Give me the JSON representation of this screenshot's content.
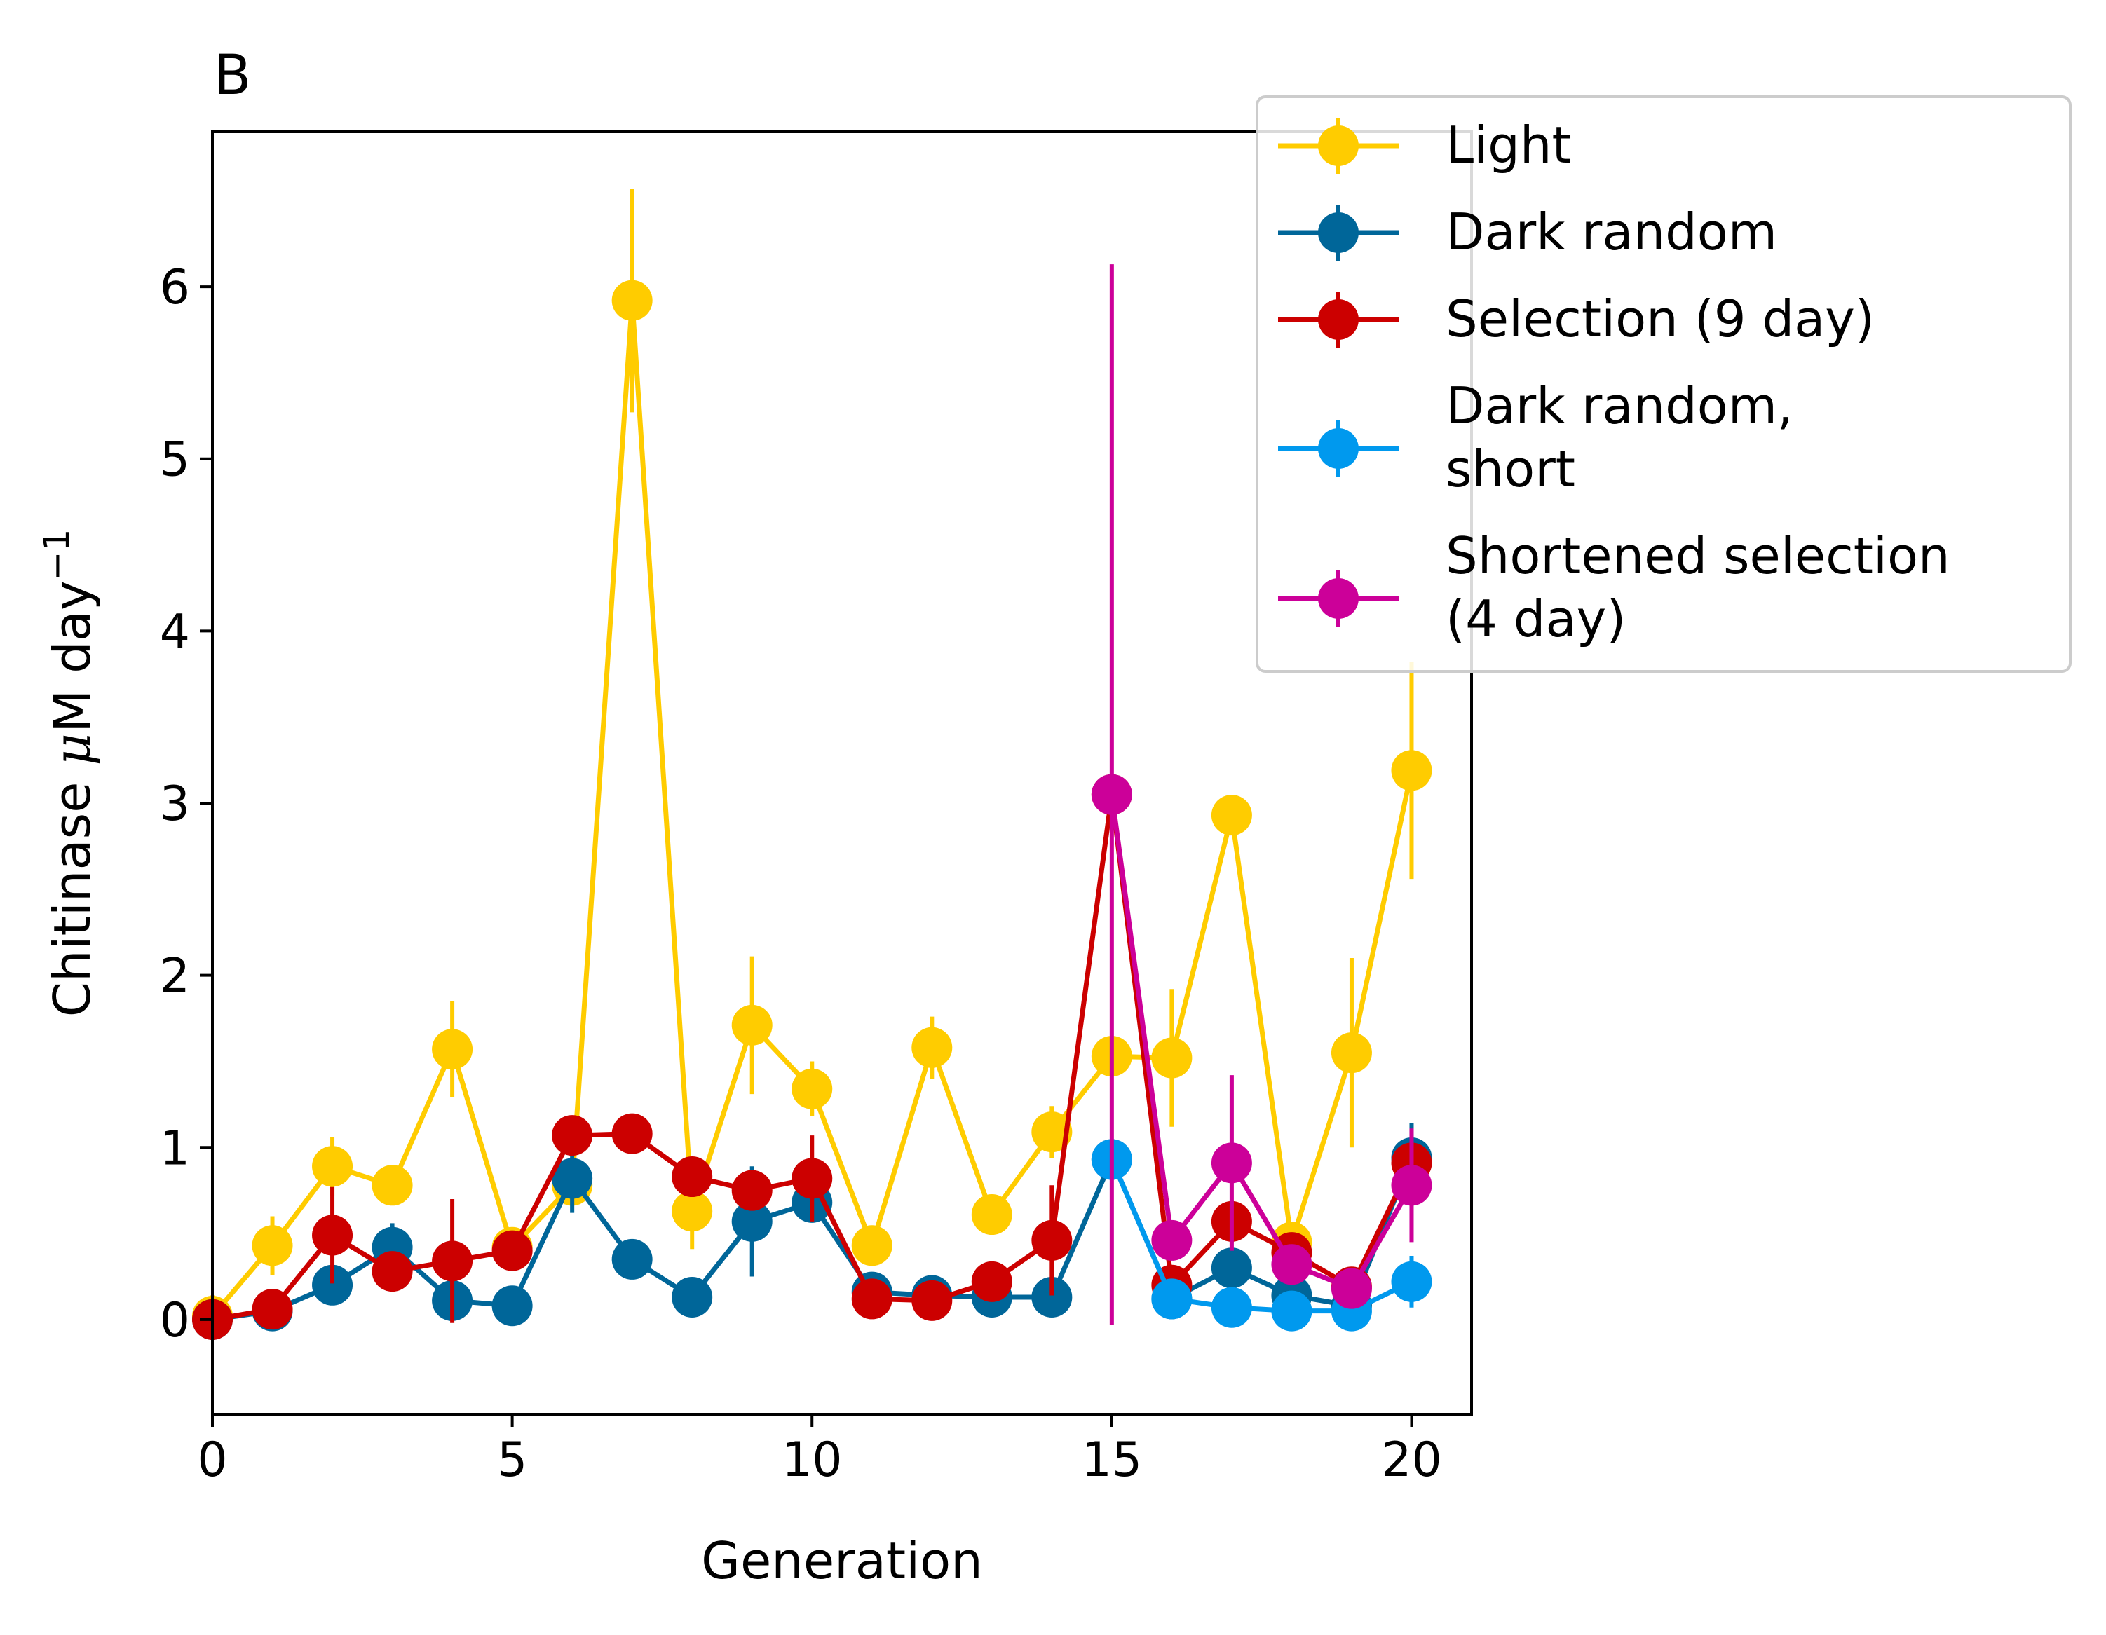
{
  "chart_data": {
    "type": "line",
    "panel_label": "B",
    "xlabel": "Generation",
    "ylabel": "Chitinase μM day⁻¹",
    "ylabel_main": "Chitinase ",
    "ylabel_mu": "μ",
    "ylabel_unit": "M day",
    "ylabel_exp": "−1",
    "xlim": [
      0,
      21
    ],
    "ylim": [
      -0.55,
      6.9
    ],
    "xticks": [
      0,
      5,
      10,
      15,
      20
    ],
    "yticks": [
      0,
      1,
      2,
      3,
      4,
      5,
      6
    ],
    "legend_placement": "upper right, outside plot",
    "series": [
      {
        "name": "Light",
        "color": "#ffcc00",
        "x": [
          0,
          1,
          2,
          3,
          4,
          5,
          6,
          7,
          8,
          9,
          10,
          11,
          12,
          13,
          14,
          15,
          16,
          17,
          18,
          19,
          20
        ],
        "y": [
          0.02,
          0.43,
          0.89,
          0.78,
          1.57,
          0.42,
          0.78,
          5.92,
          0.63,
          1.71,
          1.34,
          0.43,
          1.58,
          0.61,
          1.09,
          1.53,
          1.52,
          2.93,
          0.45,
          1.55,
          3.19
        ],
        "err": [
          0.12,
          0.17,
          0.17,
          0.08,
          0.28,
          0.05,
          0.1,
          0.65,
          0.22,
          0.4,
          0.16,
          0.08,
          0.18,
          0.06,
          0.15,
          0.1,
          0.4,
          0.08,
          0.1,
          0.55,
          0.63
        ]
      },
      {
        "name": "Dark random",
        "color": "#006699",
        "x": [
          0,
          1,
          2,
          3,
          4,
          5,
          6,
          7,
          8,
          9,
          10,
          11,
          12,
          13,
          14,
          15,
          16,
          17,
          18,
          19,
          20
        ],
        "y": [
          0.0,
          0.05,
          0.2,
          0.42,
          0.11,
          0.08,
          0.82,
          0.35,
          0.13,
          0.57,
          0.68,
          0.16,
          0.14,
          0.13,
          0.13,
          0.93,
          0.12,
          0.3,
          0.14,
          0.08,
          0.94
        ],
        "err": [
          0.02,
          0.02,
          0.04,
          0.14,
          0.05,
          0.02,
          0.2,
          0.05,
          0.03,
          0.32,
          0.05,
          0.04,
          0.03,
          0.03,
          0.03,
          0.05,
          0.03,
          0.05,
          0.03,
          0.03,
          0.2
        ]
      },
      {
        "name": "Selection (9 day)",
        "color": "#cc0000",
        "x": [
          0,
          1,
          2,
          3,
          4,
          5,
          6,
          7,
          8,
          9,
          10,
          11,
          12,
          13,
          14,
          15,
          16,
          17,
          18,
          19,
          20
        ],
        "y": [
          0.0,
          0.06,
          0.49,
          0.28,
          0.34,
          0.4,
          1.07,
          1.08,
          0.83,
          0.75,
          0.82,
          0.12,
          0.11,
          0.22,
          0.46,
          3.05,
          0.2,
          0.57,
          0.39,
          0.19,
          0.91
        ],
        "err": [
          0.02,
          0.03,
          0.28,
          0.05,
          0.36,
          0.05,
          0.05,
          0.05,
          0.08,
          0.06,
          0.25,
          0.04,
          0.04,
          0.06,
          0.32,
          0.1,
          0.06,
          0.12,
          0.08,
          0.05,
          0.1
        ]
      },
      {
        "name": "Dark random,\n short",
        "label_lines": [
          "Dark random,",
          " short"
        ],
        "color": "#0099ee",
        "x": [
          15,
          16,
          17,
          18,
          19,
          20
        ],
        "y": [
          0.93,
          0.12,
          0.07,
          0.05,
          0.05,
          0.22
        ],
        "err": [
          0.04,
          0.03,
          0.03,
          0.02,
          0.02,
          0.15
        ]
      },
      {
        "name": "Shortened selection\n (4 day)",
        "label_lines": [
          "Shortened selection",
          " (4 day)"
        ],
        "color": "#cc0099",
        "x": [
          15,
          16,
          17,
          18,
          19,
          20
        ],
        "y": [
          3.05,
          0.46,
          0.91,
          0.32,
          0.18,
          0.78
        ],
        "err": [
          3.08,
          0.1,
          0.51,
          0.06,
          0.04,
          0.33
        ]
      }
    ]
  }
}
